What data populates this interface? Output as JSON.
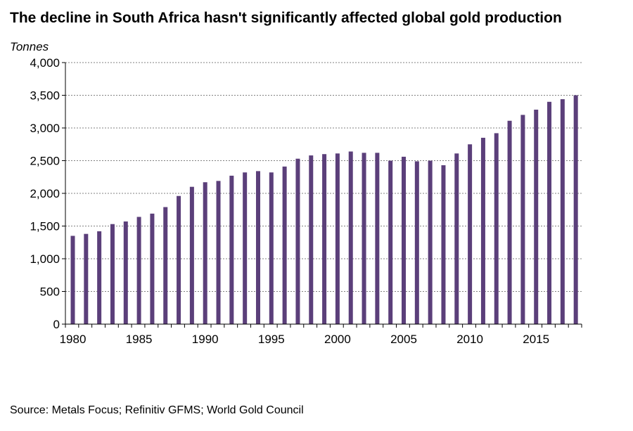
{
  "title": "The decline in South Africa hasn't significantly affected global gold production",
  "source": "Source: Metals Focus; Refinitiv GFMS; World Gold Council",
  "colors": {
    "bar": "#5b3f7a",
    "grid": "#808080",
    "axis": "#000000"
  },
  "chart_data": {
    "type": "bar",
    "ylabel": "Tonnes",
    "ylim": [
      0,
      4000
    ],
    "yticks": [
      0,
      500,
      1000,
      1500,
      2000,
      2500,
      3000,
      3500,
      4000
    ],
    "ytick_labels": [
      "0",
      "500",
      "1,000",
      "1,500",
      "2,000",
      "2,500",
      "3,000",
      "3,500",
      "4,000"
    ],
    "xticks": [
      1980,
      1985,
      1990,
      1995,
      2000,
      2005,
      2010,
      2015
    ],
    "grid": "horizontal dashed",
    "categories": [
      1980,
      1981,
      1982,
      1983,
      1984,
      1985,
      1986,
      1987,
      1988,
      1989,
      1990,
      1991,
      1992,
      1993,
      1994,
      1995,
      1996,
      1997,
      1998,
      1999,
      2000,
      2001,
      2002,
      2003,
      2004,
      2005,
      2006,
      2007,
      2008,
      2009,
      2010,
      2011,
      2012,
      2013,
      2014,
      2015,
      2016,
      2017,
      2018
    ],
    "values": [
      1350,
      1380,
      1420,
      1530,
      1570,
      1640,
      1690,
      1790,
      1960,
      2100,
      2170,
      2190,
      2270,
      2320,
      2340,
      2320,
      2410,
      2530,
      2580,
      2600,
      2610,
      2640,
      2620,
      2620,
      2500,
      2560,
      2490,
      2500,
      2430,
      2610,
      2750,
      2850,
      2920,
      3110,
      3200,
      3280,
      3400,
      3440,
      3500
    ]
  }
}
